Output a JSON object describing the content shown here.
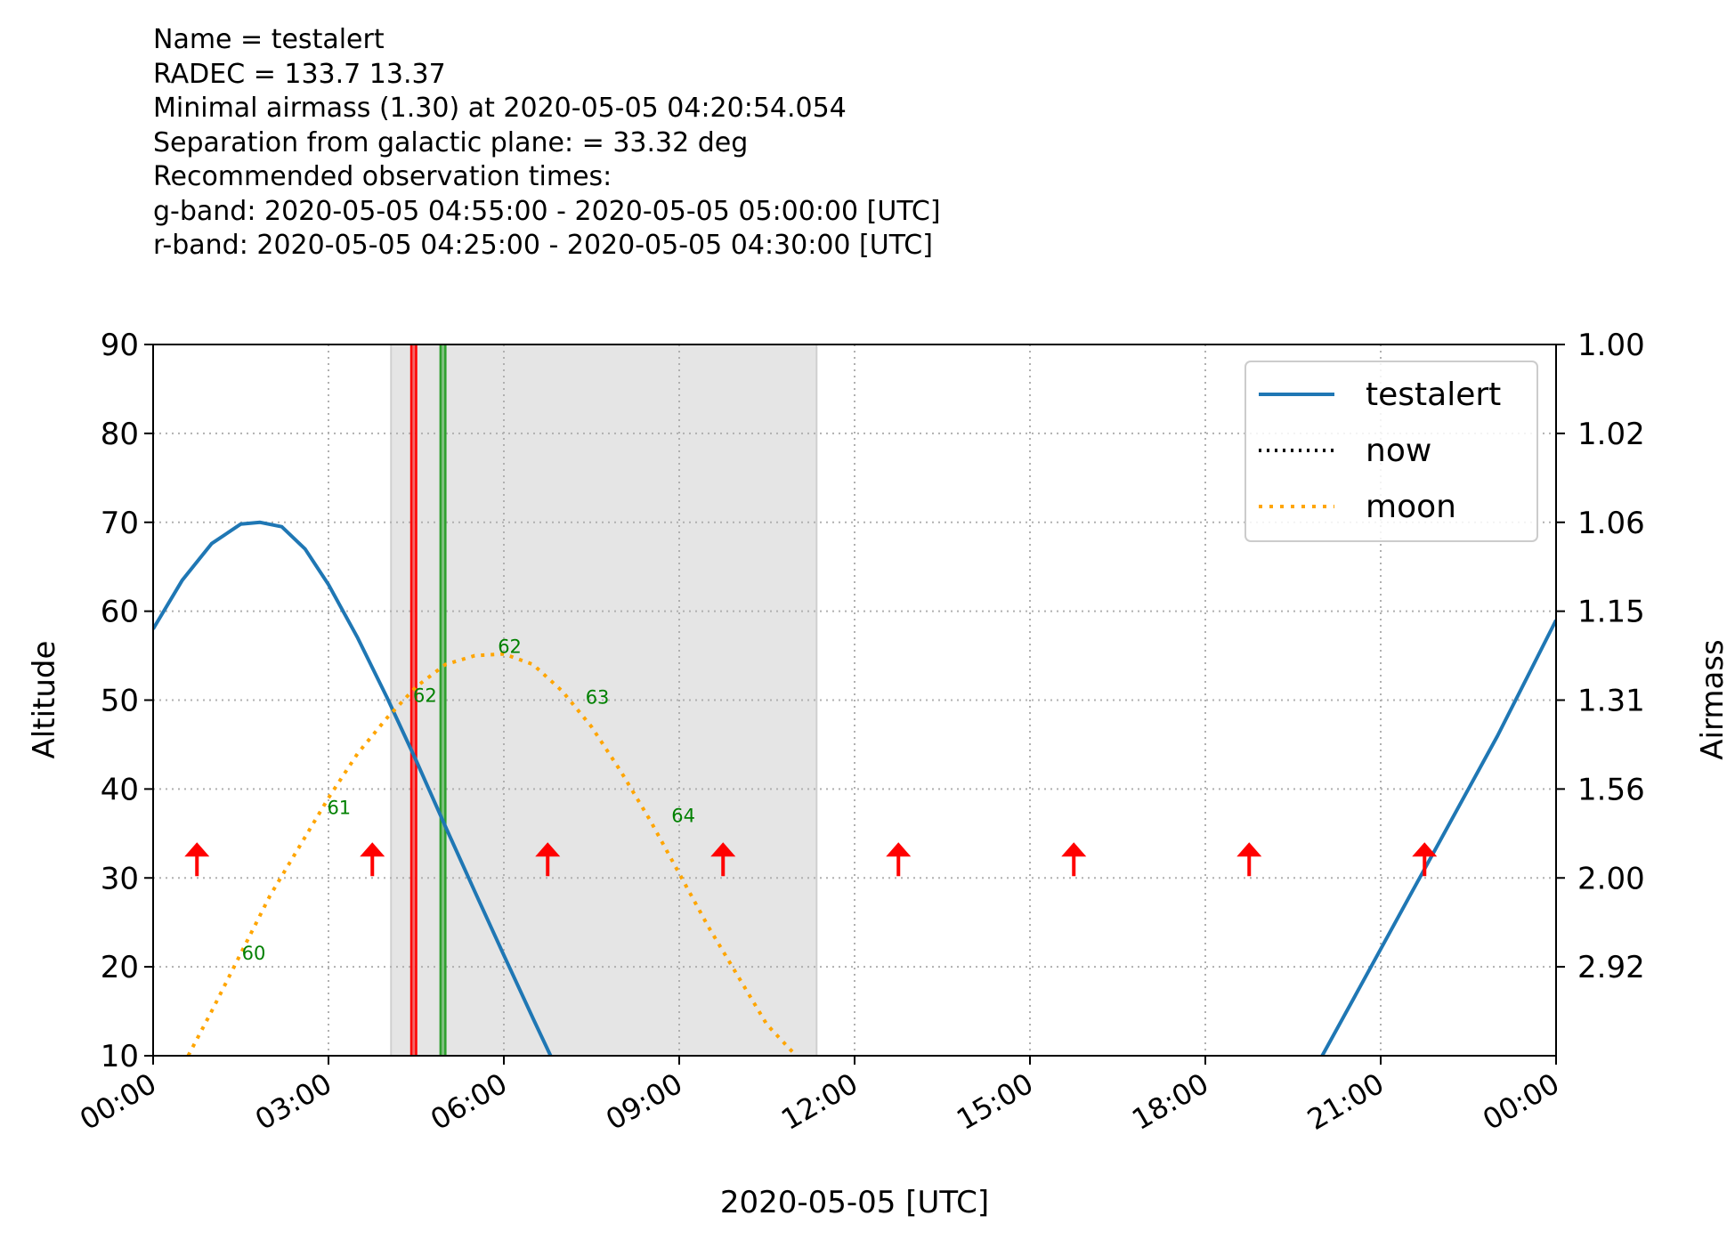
{
  "header_lines": [
    "Name = testalert",
    "RADEC = 133.7 13.37",
    "Minimal airmass (1.30) at 2020-05-05 04:20:54.054",
    "Separation from galactic plane: = 33.32 deg",
    "Recommended observation times:",
    "g-band: 2020-05-05 04:55:00 - 2020-05-05 05:00:00 [UTC]",
    "r-band: 2020-05-05 04:25:00 - 2020-05-05 04:30:00 [UTC]"
  ],
  "colors": {
    "target": "#1f77b4",
    "moon": "#ffa500",
    "now": "#000000",
    "g_band": "#2ca02c",
    "r_band": "#ff0000",
    "night_shade": "#e5e5e5",
    "moon_label": "#008000",
    "wind_arrow": "#ff0000",
    "grid": "#b0b0b0"
  },
  "chart_data": {
    "type": "line",
    "xlabel": "2020-05-05 [UTC]",
    "ylabel": "Altitude",
    "y2label": "Airmass",
    "xlim_hours": [
      0,
      24
    ],
    "ylim": [
      10,
      90
    ],
    "grid": true,
    "legend_position": "top-right",
    "x_tick_labels": [
      "00:00",
      "03:00",
      "06:00",
      "09:00",
      "12:00",
      "15:00",
      "18:00",
      "21:00",
      "00:00"
    ],
    "y_ticks": [
      10,
      20,
      30,
      40,
      50,
      60,
      70,
      80,
      90
    ],
    "airmass_ticks": [
      {
        "alt": 90,
        "label": "1.00"
      },
      {
        "alt": 80,
        "label": "1.02"
      },
      {
        "alt": 70,
        "label": "1.06"
      },
      {
        "alt": 60,
        "label": "1.15"
      },
      {
        "alt": 50,
        "label": "1.31"
      },
      {
        "alt": 40,
        "label": "1.56"
      },
      {
        "alt": 30,
        "label": "2.00"
      },
      {
        "alt": 20,
        "label": "2.92"
      }
    ],
    "legend": [
      {
        "name": "testalert",
        "style": "solid",
        "color": "#1f77b4"
      },
      {
        "name": "now",
        "style": "dotted",
        "color": "#000000"
      },
      {
        "name": "moon",
        "style": "dotted",
        "color": "#ffa500"
      }
    ],
    "series": [
      {
        "name": "testalert",
        "style": "solid",
        "hours": [
          0.0,
          0.5,
          1.0,
          1.5,
          1.83,
          2.2,
          2.6,
          3.0,
          3.5,
          4.0,
          4.5,
          5.0,
          5.5,
          6.0,
          6.5,
          7.0,
          7.6
        ],
        "altitude": [
          58.0,
          63.5,
          67.6,
          69.8,
          70.0,
          69.5,
          67.0,
          63.0,
          57.0,
          50.3,
          43.2,
          35.8,
          28.5,
          21.3,
          14.2,
          7.2,
          0.0
        ]
      },
      {
        "name": "testalert",
        "style": "solid",
        "hours": [
          20.0,
          20.5,
          21.0,
          21.5,
          22.0,
          22.5,
          23.0,
          23.5,
          24.0
        ],
        "altitude": [
          10.0,
          16.0,
          22.0,
          28.0,
          34.0,
          40.0,
          46.0,
          52.5,
          59.0
        ]
      },
      {
        "name": "moon",
        "style": "dotted",
        "hours": [
          0.6,
          1.0,
          1.5,
          2.0,
          2.5,
          3.0,
          3.5,
          4.0,
          4.5,
          5.0,
          5.5,
          6.0,
          6.5,
          7.0,
          7.5,
          8.0,
          8.5,
          9.0,
          9.5,
          10.0,
          10.5,
          11.0
        ],
        "altitude": [
          10.0,
          15.0,
          21.5,
          28.0,
          33.5,
          39.0,
          44.0,
          48.0,
          51.5,
          54.0,
          55.0,
          55.2,
          54.0,
          51.0,
          47.0,
          42.0,
          36.5,
          30.5,
          24.5,
          19.0,
          13.5,
          10.0
        ]
      }
    ],
    "night_shade_hours": [
      4.07,
      11.35
    ],
    "band_lines": [
      {
        "band": "r",
        "start_hour": 4.4167,
        "end_hour": 4.5
      },
      {
        "band": "g",
        "start_hour": 4.9167,
        "end_hour": 5.0
      }
    ],
    "moon_labels": [
      {
        "hour": 1.72,
        "alt": 20.8,
        "text": "60"
      },
      {
        "hour": 3.18,
        "alt": 37.2,
        "text": "61"
      },
      {
        "hour": 4.65,
        "alt": 49.8,
        "text": "62"
      },
      {
        "hour": 6.1,
        "alt": 55.3,
        "text": "62"
      },
      {
        "hour": 7.6,
        "alt": 49.6,
        "text": "63"
      },
      {
        "hour": 9.07,
        "alt": 36.3,
        "text": "64"
      }
    ],
    "wind_arrow_hours": [
      0.75,
      3.75,
      6.75,
      9.75,
      12.75,
      15.75,
      18.75,
      21.75
    ],
    "wind_arrow_alt": 30
  }
}
